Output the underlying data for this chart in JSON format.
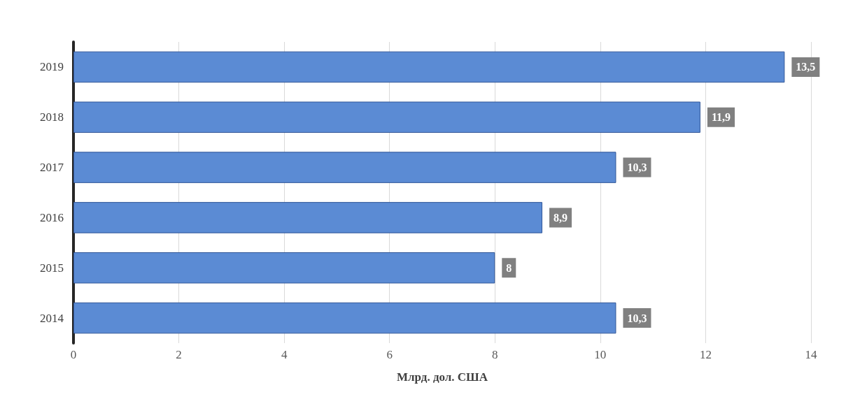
{
  "chart_data": {
    "type": "bar",
    "orientation": "horizontal",
    "categories": [
      "2019",
      "2018",
      "2017",
      "2016",
      "2015",
      "2014"
    ],
    "values": [
      13.5,
      11.9,
      10.3,
      8.9,
      8,
      10.3
    ],
    "value_labels": [
      "13,5",
      "11,9",
      "10,3",
      "8,9",
      "8",
      "10,3"
    ],
    "color": "#5b8bd4",
    "xlim": [
      0,
      14
    ],
    "xticks": [
      0,
      2,
      4,
      6,
      8,
      10,
      12,
      14
    ],
    "xlabel": "Млрд. дол. США",
    "grid": "x"
  }
}
